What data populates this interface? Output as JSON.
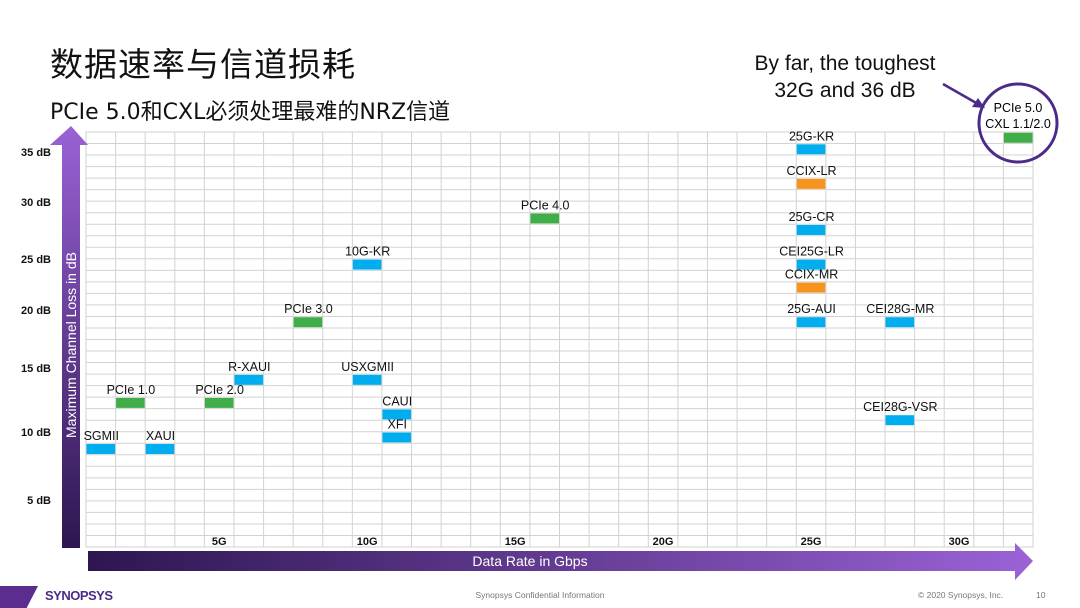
{
  "slide": {
    "title": "数据速率与信道损耗",
    "subtitle": "PCIe 5.0和CXL必须处理最难的NRZ信道",
    "annotation_line1": "By far, the toughest",
    "annotation_line2": "32G and 36 dB",
    "highlight_label_line1": "PCIe 5.0",
    "highlight_label_line2": "CXL 1.1/2.0"
  },
  "footer": {
    "logo": "SYNOPSYS",
    "confidential": "Synopsys Confidential Information",
    "copyright": "© 2020 Synopsys, Inc.",
    "page_number": "10"
  },
  "colors": {
    "blue": "#00aeef",
    "green": "#3fae49",
    "orange": "#f7941d",
    "axis_dark": "#2d1650",
    "axis_light": "#9a62d6",
    "highlight_circle": "#4b2a8a"
  },
  "chart_data": {
    "type": "scatter",
    "xlabel": "Data Rate in Gbps",
    "ylabel": "Maximum Channel Loss in dB",
    "xlim": [
      0,
      32
    ],
    "ylim": [
      0,
      36
    ],
    "grid": true,
    "x_ticks": [
      "5G",
      "10G",
      "15G",
      "20G",
      "25G",
      "30G"
    ],
    "x_tick_values": [
      5,
      10,
      15,
      20,
      25,
      30
    ],
    "y_ticks": [
      "35 dB",
      "30 dB",
      "25 dB",
      "20 dB",
      "15 dB",
      "10 dB",
      "5 dB"
    ],
    "y_tick_values": [
      35,
      30,
      25,
      20,
      15,
      10,
      5
    ],
    "points": [
      {
        "label": "SGMII",
        "x": 1,
        "y": 8.5,
        "color": "blue"
      },
      {
        "label": "PCIe 1.0",
        "x": 2,
        "y": 12.5,
        "color": "green"
      },
      {
        "label": "XAUI",
        "x": 3,
        "y": 8.5,
        "color": "blue"
      },
      {
        "label": "PCIe 2.0",
        "x": 5,
        "y": 12.5,
        "color": "green"
      },
      {
        "label": "R-XAUI",
        "x": 6,
        "y": 14.5,
        "color": "blue"
      },
      {
        "label": "PCIe 3.0",
        "x": 8,
        "y": 19.5,
        "color": "green"
      },
      {
        "label": "10G-KR",
        "x": 10,
        "y": 24.5,
        "color": "blue"
      },
      {
        "label": "USXGMII",
        "x": 10,
        "y": 14.5,
        "color": "blue"
      },
      {
        "label": "CAUI",
        "x": 11,
        "y": 11.5,
        "color": "blue"
      },
      {
        "label": "XFI",
        "x": 11,
        "y": 9.5,
        "color": "blue"
      },
      {
        "label": "PCIe 4.0",
        "x": 16,
        "y": 28.5,
        "color": "green"
      },
      {
        "label": "25G-KR",
        "x": 25,
        "y": 34.5,
        "color": "blue"
      },
      {
        "label": "CCIX-LR",
        "x": 25,
        "y": 31.5,
        "color": "orange"
      },
      {
        "label": "25G-CR",
        "x": 25,
        "y": 27.5,
        "color": "blue"
      },
      {
        "label": "CEI25G-LR",
        "x": 25,
        "y": 24.5,
        "color": "blue"
      },
      {
        "label": "CCIX-MR",
        "x": 25,
        "y": 22.5,
        "color": "orange"
      },
      {
        "label": "25G-AUI",
        "x": 25,
        "y": 19.5,
        "color": "blue"
      },
      {
        "label": "CEI28G-MR",
        "x": 28,
        "y": 19.5,
        "color": "blue"
      },
      {
        "label": "CEI28G-VSR",
        "x": 28,
        "y": 11,
        "color": "blue"
      },
      {
        "label": "PCIe 5.0 / CXL 1.1/2.0",
        "x": 32,
        "y": 35.5,
        "color": "green"
      }
    ]
  }
}
